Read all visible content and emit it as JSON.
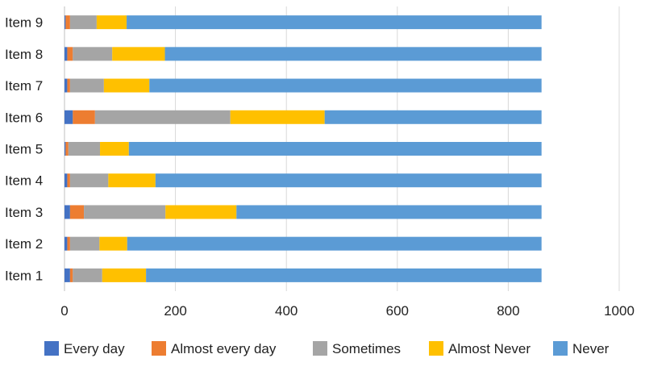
{
  "chart_data": {
    "type": "bar",
    "orientation": "horizontal",
    "stacked": true,
    "categories": [
      "Item 1",
      "Item 2",
      "Item 3",
      "Item 4",
      "Item 5",
      "Item 6",
      "Item 7",
      "Item 8",
      "Item 9"
    ],
    "series": [
      {
        "name": "Every day",
        "color": "#4472c4",
        "values": [
          10,
          5,
          10,
          5,
          2,
          15,
          5,
          5,
          2
        ]
      },
      {
        "name": "Almost every day",
        "color": "#ed7d31",
        "values": [
          5,
          5,
          25,
          5,
          5,
          40,
          5,
          10,
          8
        ]
      },
      {
        "name": "Sometimes",
        "color": "#a5a5a5",
        "values": [
          53,
          53,
          147,
          69,
          57,
          244,
          61,
          71,
          48
        ]
      },
      {
        "name": "Almost Never",
        "color": "#ffc000",
        "values": [
          79,
          50,
          128,
          85,
          52,
          170,
          82,
          95,
          54
        ]
      },
      {
        "name": "Never",
        "color": "#5b9bd5",
        "values": [
          713,
          747,
          550,
          696,
          744,
          391,
          707,
          679,
          748
        ]
      }
    ],
    "xlim": [
      0,
      1000
    ],
    "xticks": [
      0,
      200,
      400,
      600,
      800,
      1000
    ],
    "xlabel": "",
    "ylabel": "",
    "title": "",
    "grid": true,
    "legend_position": "bottom"
  }
}
